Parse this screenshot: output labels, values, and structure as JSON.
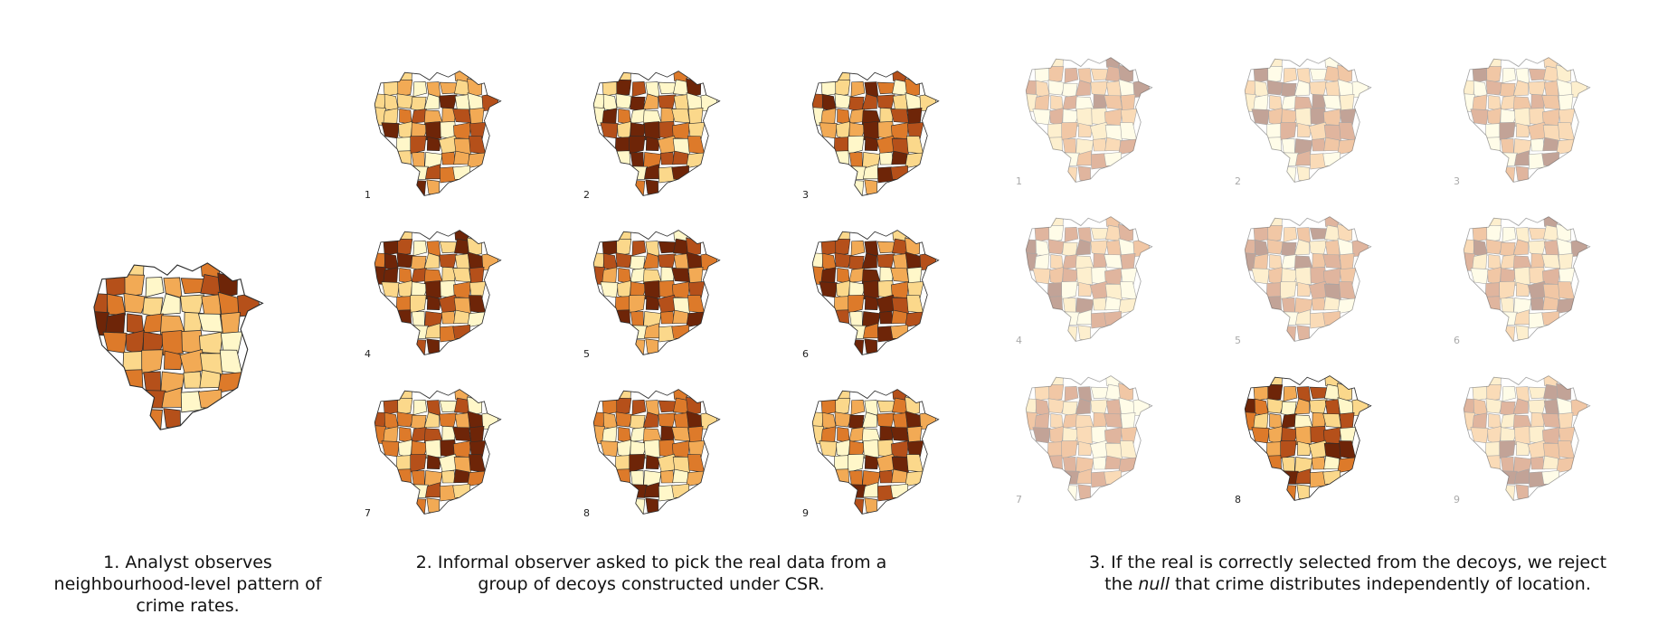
{
  "colors": [
    "#fff7c9",
    "#fbd88b",
    "#f2aa55",
    "#dd7a2a",
    "#b5501a",
    "#6e2508"
  ],
  "outline": "#2b2b2b",
  "observed": {
    "levels": [
      1,
      3,
      4,
      2,
      0,
      2,
      3,
      4,
      5,
      4,
      3,
      2,
      1,
      0,
      1,
      2,
      3,
      4,
      5,
      5,
      4,
      3,
      2,
      1,
      0,
      2,
      3,
      4,
      4,
      3,
      2,
      1,
      0,
      1,
      2,
      3,
      2,
      1,
      0,
      3,
      4,
      2,
      1
    ]
  },
  "lineup": {
    "maps": [
      {
        "label": "1"
      },
      {
        "label": "2"
      },
      {
        "label": "3"
      },
      {
        "label": "4"
      },
      {
        "label": "5"
      },
      {
        "label": "6"
      },
      {
        "label": "7"
      },
      {
        "label": "8"
      },
      {
        "label": "9"
      }
    ]
  },
  "result": {
    "highlighted": "8",
    "maps": [
      {
        "label": "1"
      },
      {
        "label": "2"
      },
      {
        "label": "3"
      },
      {
        "label": "4"
      },
      {
        "label": "5"
      },
      {
        "label": "6"
      },
      {
        "label": "7"
      },
      {
        "label": "8"
      },
      {
        "label": "9"
      }
    ]
  },
  "captions": {
    "step1": "1. Analyst observes neighbourhood-level pattern of crime rates.",
    "step2": "2. Informal observer asked to pick the real data from a group of decoys constructed under CSR.",
    "step3_pre": "3. If the real is correctly selected from the decoys, we  reject the ",
    "step3_null": "null",
    "step3_post": " that crime distributes independently of location."
  }
}
